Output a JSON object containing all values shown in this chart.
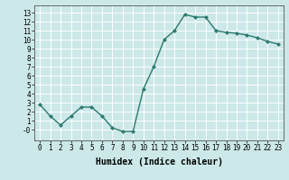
{
  "x": [
    0,
    1,
    2,
    3,
    4,
    5,
    6,
    7,
    8,
    9,
    10,
    11,
    12,
    13,
    14,
    15,
    16,
    17,
    18,
    19,
    20,
    21,
    22,
    23
  ],
  "y": [
    2.8,
    1.5,
    0.5,
    1.5,
    2.5,
    2.5,
    1.5,
    0.2,
    -0.2,
    -0.2,
    4.5,
    7.0,
    10.0,
    11.0,
    12.8,
    12.5,
    12.5,
    11.0,
    10.8,
    10.7,
    10.5,
    10.2,
    9.8,
    9.5
  ],
  "xlabel": "Humidex (Indice chaleur)",
  "xlim": [
    -0.5,
    23.5
  ],
  "ylim": [
    -1.2,
    13.8
  ],
  "yticks": [
    0,
    1,
    2,
    3,
    4,
    5,
    6,
    7,
    8,
    9,
    10,
    11,
    12,
    13
  ],
  "ytick_labels": [
    "-0",
    "1",
    "2",
    "3",
    "4",
    "5",
    "6",
    "7",
    "8",
    "9",
    "10",
    "11",
    "12",
    "13"
  ],
  "xticks": [
    0,
    1,
    2,
    3,
    4,
    5,
    6,
    7,
    8,
    9,
    10,
    11,
    12,
    13,
    14,
    15,
    16,
    17,
    18,
    19,
    20,
    21,
    22,
    23
  ],
  "xtick_labels": [
    "0",
    "1",
    "2",
    "3",
    "4",
    "5",
    "6",
    "7",
    "8",
    "9",
    "10",
    "11",
    "12",
    "13",
    "14",
    "15",
    "16",
    "17",
    "18",
    "19",
    "20",
    "21",
    "22",
    "23"
  ],
  "line_color": "#2d7a6e",
  "marker": "D",
  "marker_size": 2.0,
  "line_width": 1.0,
  "bg_color": "#cce8e8",
  "grid_color": "#ffffff",
  "xlabel_fontsize": 7,
  "tick_fontsize": 5.5,
  "xlabel_fontweight": "bold"
}
